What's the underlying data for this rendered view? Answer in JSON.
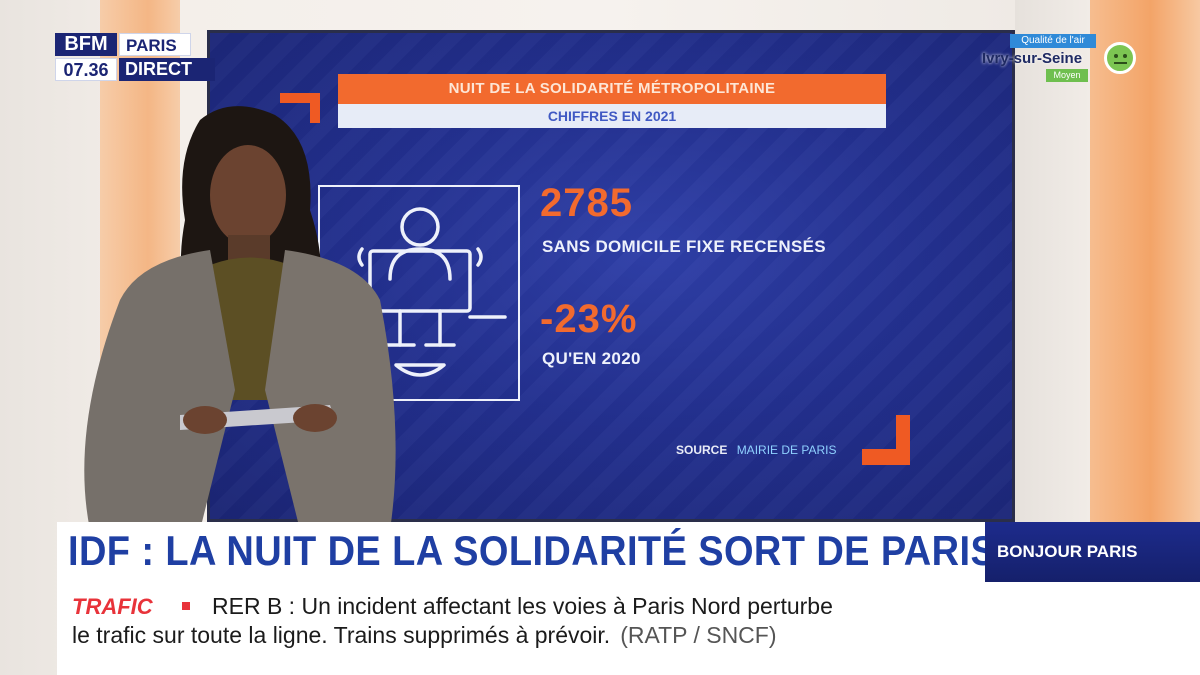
{
  "channel": {
    "logo": "BFM",
    "region": "PARIS",
    "time": "07.36",
    "live": "DIRECT"
  },
  "air_quality": {
    "label": "Qualité de l'air",
    "city": "Ivry-sur-Seine",
    "level": "Moyen"
  },
  "screen": {
    "title": "NUIT DE LA SOLIDARITÉ MÉTROPOLITAINE",
    "subtitle": "CHIFFRES EN 2021",
    "stat1_value": "2785",
    "stat1_label": "SANS DOMICILE FIXE RECENSÉS",
    "stat2_value": "-23%",
    "stat2_label": "QU'EN 2020",
    "source_key": "SOURCE",
    "source_value": "MAIRIE DE PARIS"
  },
  "lower_third": {
    "headline": "IDF : LA NUIT DE LA SOLIDARITÉ SORT DE PARIS",
    "show": "BONJOUR PARIS"
  },
  "ticker": {
    "category": "TRAFIC",
    "line1": "RER B : Un incident affectant les voies à Paris Nord perturbe",
    "line2": "le trafic sur toute la ligne. Trains supprimés à prévoir.",
    "source": "(RATP / SNCF)"
  },
  "colors": {
    "accent_orange": "#f26a2e",
    "brand_blue": "#1b2574",
    "headline_blue": "#1f3fa3",
    "ticker_red": "#e8333a"
  },
  "icons": [
    "homeless-person-icon",
    "air-quality-face-icon"
  ]
}
